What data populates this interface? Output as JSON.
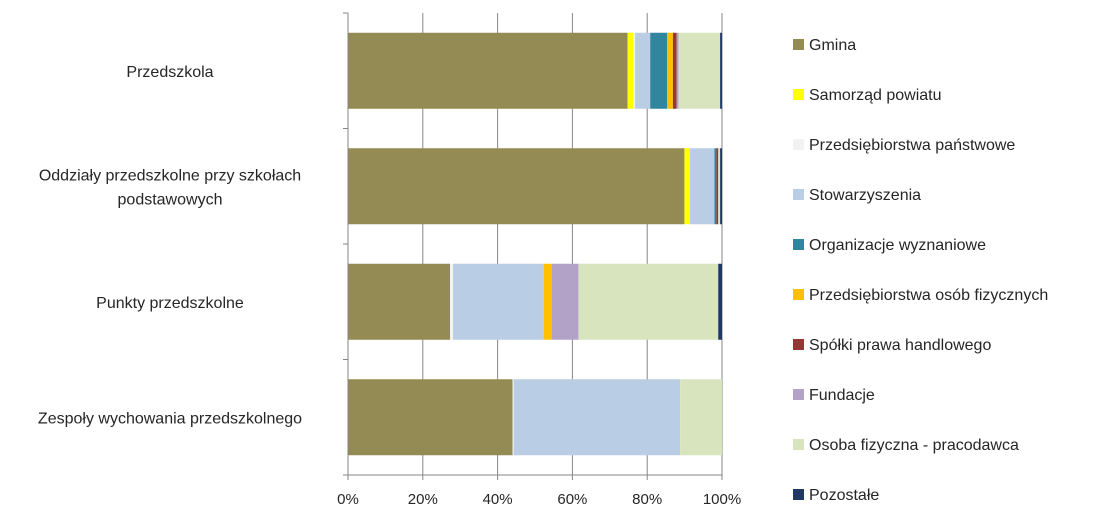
{
  "chart_data": {
    "type": "bar",
    "orientation": "horizontal",
    "stacked": "percent",
    "title": "",
    "xlabel": "",
    "ylabel": "",
    "xlim": [
      0,
      100
    ],
    "x_ticks": [
      "0%",
      "20%",
      "40%",
      "60%",
      "80%",
      "100%"
    ],
    "grid": "vertical",
    "legend_position": "right",
    "categories": [
      [
        "Przedszkola"
      ],
      [
        "Oddziały przedszkolne przy szkołach",
        "podstawowych"
      ],
      [
        "Punkty przedszkolne"
      ],
      [
        "Zespoły wychowania przedszkolnego"
      ]
    ],
    "series": [
      {
        "name": "Gmina",
        "color": "#948A54",
        "values": [
          74.0,
          89.5,
          27.0,
          44.0
        ]
      },
      {
        "name": "Samorząd powiatu",
        "color": "#FFFF00",
        "values": [
          1.5,
          1.5,
          0,
          0
        ]
      },
      {
        "name": "Przedsiębiorstwa państwowe",
        "color": "#F2F2F2",
        "values": [
          0.5,
          0,
          0.8,
          0.3
        ]
      },
      {
        "name": "Stowarzyszenia",
        "color": "#B9CDE5",
        "values": [
          4.0,
          6.5,
          24.0,
          44.5
        ]
      },
      {
        "name": "Organizacje wyznaniowe",
        "color": "#31859C",
        "values": [
          4.5,
          0.5,
          0,
          0
        ]
      },
      {
        "name": "Przedsiębiorstwa osób fizycznych",
        "color": "#FFC000",
        "values": [
          1.5,
          0,
          2.2,
          0
        ]
      },
      {
        "name": "Spółki prawa handlowego",
        "color": "#953735",
        "values": [
          1.0,
          0.5,
          0,
          0
        ]
      },
      {
        "name": "Fundacje",
        "color": "#B3A2C7",
        "values": [
          0.5,
          0,
          7.0,
          0
        ]
      },
      {
        "name": "Osoba fizyczna - pracodawca",
        "color": "#D7E4BD",
        "values": [
          11.0,
          0.5,
          37.0,
          11.2
        ]
      },
      {
        "name": "Pozostałe",
        "color": "#1F3864",
        "values": [
          0.5,
          0.5,
          1.0,
          0
        ]
      }
    ]
  }
}
